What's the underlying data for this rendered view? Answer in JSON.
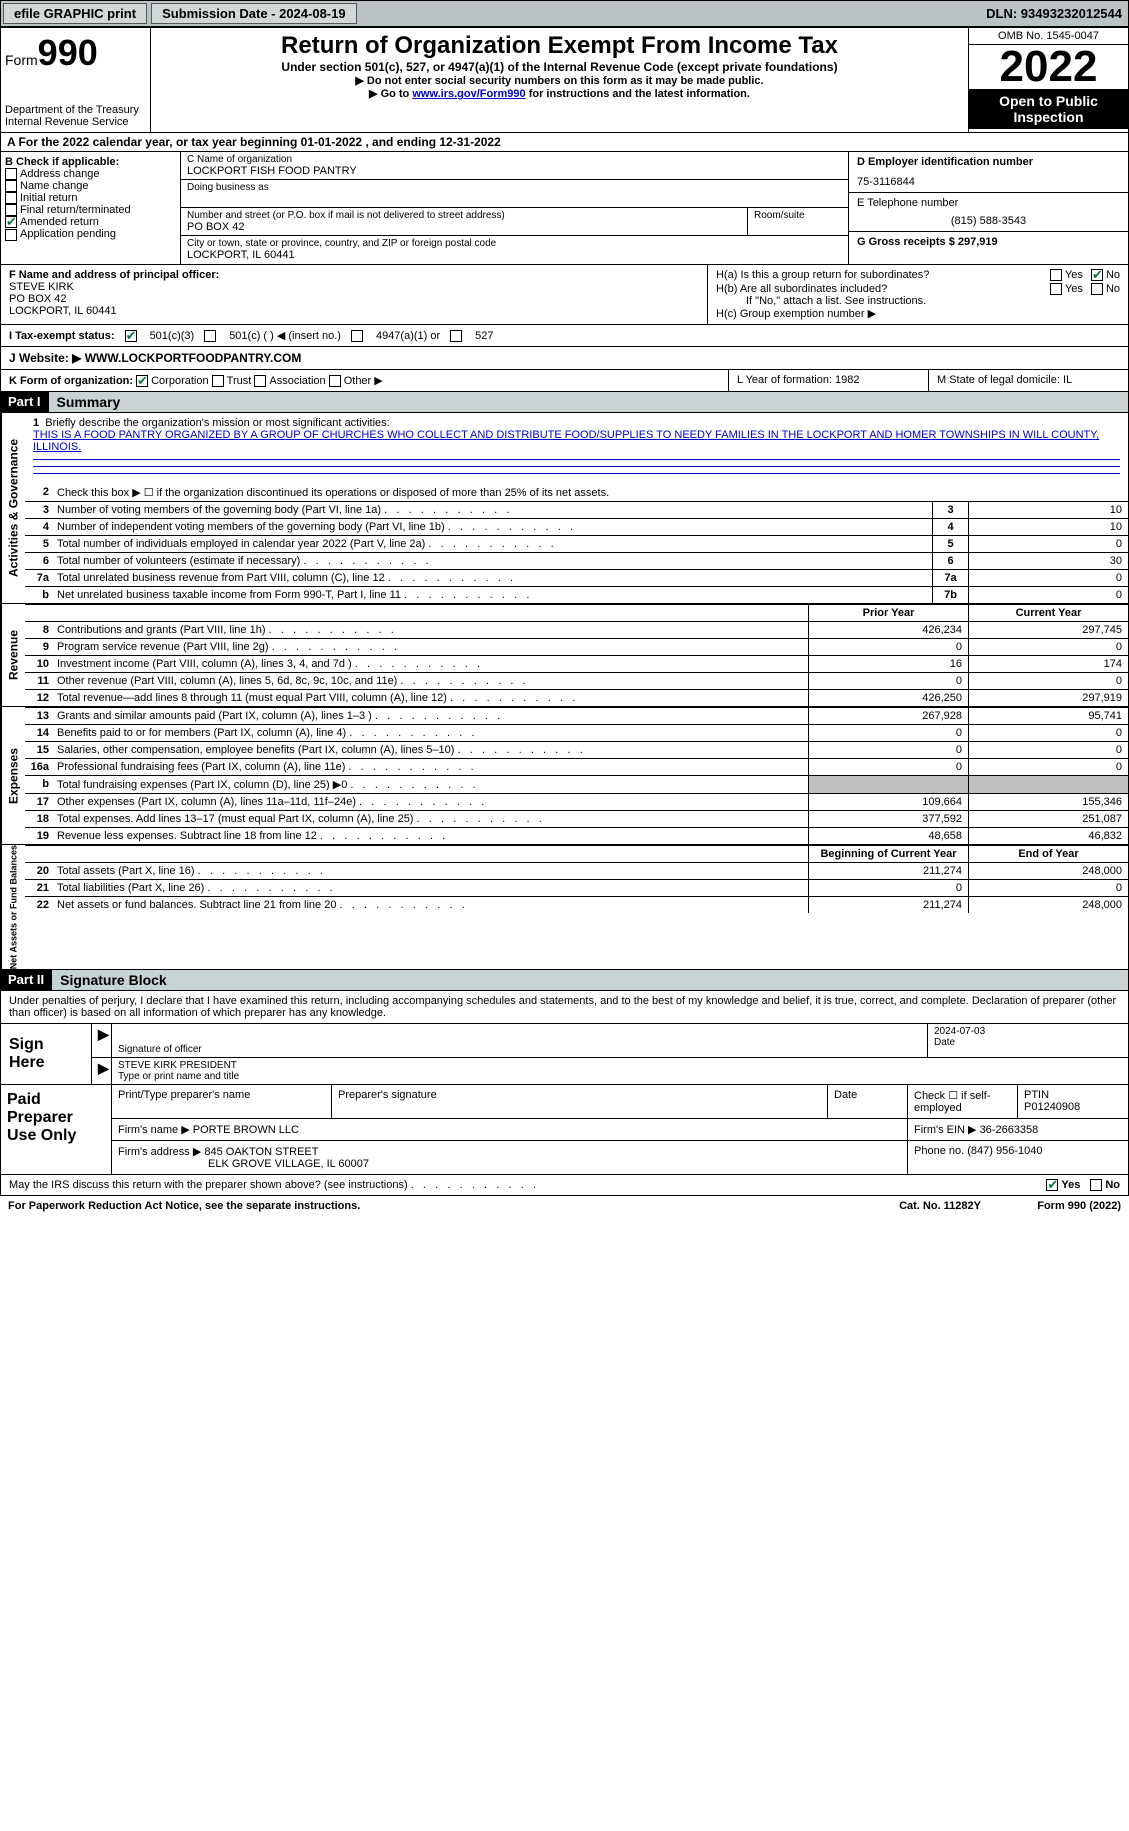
{
  "topbar": {
    "efile": "efile GRAPHIC print",
    "sub_label": "Submission Date - 2024-08-19",
    "dln_label": "DLN: 93493232012544"
  },
  "header": {
    "form_label": "Form",
    "form_num": "990",
    "dept": "Department of the Treasury",
    "irs": "Internal Revenue Service",
    "title": "Return of Organization Exempt From Income Tax",
    "subtitle": "Under section 501(c), 527, or 4947(a)(1) of the Internal Revenue Code (except private foundations)",
    "note1": "▶ Do not enter social security numbers on this form as it may be made public.",
    "note2_pre": "▶ Go to ",
    "note2_link": "www.irs.gov/Form990",
    "note2_post": " for instructions and the latest information.",
    "omb": "OMB No. 1545-0047",
    "year": "2022",
    "opi": "Open to Public Inspection"
  },
  "row_a": "A For the 2022 calendar year, or tax year beginning 01-01-2022    , and ending 12-31-2022",
  "col_b": {
    "label": "B Check if applicable:",
    "items": [
      "Address change",
      "Name change",
      "Initial return",
      "Final return/terminated",
      "Amended return",
      "Application pending"
    ],
    "checked_idx": 4
  },
  "col_c": {
    "name_label": "C Name of organization",
    "name": "LOCKPORT FISH FOOD PANTRY",
    "dba_label": "Doing business as",
    "street_label": "Number and street (or P.O. box if mail is not delivered to street address)",
    "street": "PO BOX 42",
    "room_label": "Room/suite",
    "city_label": "City or town, state or province, country, and ZIP or foreign postal code",
    "city": "LOCKPORT, IL  60441"
  },
  "col_d": {
    "d_label": "D Employer identification number",
    "d_val": "75-3116844",
    "e_label": "E Telephone number",
    "e_val": "(815) 588-3543",
    "g_label": "G Gross receipts $ 297,919"
  },
  "fgh": {
    "f_label": "F Name and address of principal officer:",
    "f_name": "STEVE KIRK",
    "f_addr1": "PO BOX 42",
    "f_addr2": "LOCKPORT, IL  60441",
    "ha": "H(a)  Is this a group return for subordinates?",
    "hb": "H(b)  Are all subordinates included?",
    "hb_note": "If \"No,\" attach a list. See instructions.",
    "hc": "H(c)  Group exemption number ▶",
    "yes": "Yes",
    "no": "No"
  },
  "line_i": {
    "label": "I   Tax-exempt status:",
    "opts": [
      "501(c)(3)",
      "501(c) (   ) ◀ (insert no.)",
      "4947(a)(1) or",
      "527"
    ]
  },
  "line_j": {
    "label": "J   Website: ▶",
    "val": "  WWW.LOCKPORTFOODPANTRY.COM"
  },
  "line_k": {
    "label": "K Form of organization:",
    "opts": [
      "Corporation",
      "Trust",
      "Association",
      "Other ▶"
    ],
    "l": "L Year of formation: 1982",
    "m": "M State of legal domicile: IL"
  },
  "part1": {
    "head": "Part I",
    "title": "Summary",
    "mission_label": "Briefly describe the organization's mission or most significant activities:",
    "mission": "THIS IS A FOOD PANTRY ORGANIZED BY A GROUP OF CHURCHES WHO COLLECT AND DISTRIBUTE FOOD/SUPPLIES TO NEEDY FAMILIES IN THE LOCKPORT AND HOMER TOWNSHIPS IN WILL COUNTY, ILLINOIS.",
    "line2": "Check this box ▶ ☐ if the organization discontinued its operations or disposed of more than 25% of its net assets.",
    "vtabs": {
      "ag": "Activities & Governance",
      "rev": "Revenue",
      "exp": "Expenses",
      "na": "Net Assets or Fund Balances"
    },
    "lines_gov": [
      {
        "n": "3",
        "t": "Number of voting members of the governing body (Part VI, line 1a)",
        "b": "3",
        "v": "10"
      },
      {
        "n": "4",
        "t": "Number of independent voting members of the governing body (Part VI, line 1b)",
        "b": "4",
        "v": "10"
      },
      {
        "n": "5",
        "t": "Total number of individuals employed in calendar year 2022 (Part V, line 2a)",
        "b": "5",
        "v": "0"
      },
      {
        "n": "6",
        "t": "Total number of volunteers (estimate if necessary)",
        "b": "6",
        "v": "30"
      },
      {
        "n": "7a",
        "t": "Total unrelated business revenue from Part VIII, column (C), line 12",
        "b": "7a",
        "v": "0"
      },
      {
        "n": "b",
        "t": "Net unrelated business taxable income from Form 990-T, Part I, line 11",
        "b": "7b",
        "v": "0"
      }
    ],
    "rev_head": {
      "prior": "Prior Year",
      "current": "Current Year"
    },
    "lines_rev": [
      {
        "n": "8",
        "t": "Contributions and grants (Part VIII, line 1h)",
        "c1": "426,234",
        "c2": "297,745"
      },
      {
        "n": "9",
        "t": "Program service revenue (Part VIII, line 2g)",
        "c1": "0",
        "c2": "0"
      },
      {
        "n": "10",
        "t": "Investment income (Part VIII, column (A), lines 3, 4, and 7d )",
        "c1": "16",
        "c2": "174"
      },
      {
        "n": "11",
        "t": "Other revenue (Part VIII, column (A), lines 5, 6d, 8c, 9c, 10c, and 11e)",
        "c1": "0",
        "c2": "0"
      },
      {
        "n": "12",
        "t": "Total revenue—add lines 8 through 11 (must equal Part VIII, column (A), line 12)",
        "c1": "426,250",
        "c2": "297,919"
      }
    ],
    "lines_exp": [
      {
        "n": "13",
        "t": "Grants and similar amounts paid (Part IX, column (A), lines 1–3 )",
        "c1": "267,928",
        "c2": "95,741"
      },
      {
        "n": "14",
        "t": "Benefits paid to or for members (Part IX, column (A), line 4)",
        "c1": "0",
        "c2": "0"
      },
      {
        "n": "15",
        "t": "Salaries, other compensation, employee benefits (Part IX, column (A), lines 5–10)",
        "c1": "0",
        "c2": "0"
      },
      {
        "n": "16a",
        "t": "Professional fundraising fees (Part IX, column (A), line 11e)",
        "c1": "0",
        "c2": "0"
      },
      {
        "n": "b",
        "t": "Total fundraising expenses (Part IX, column (D), line 25) ▶0",
        "c1": "",
        "c2": "",
        "gray": true
      },
      {
        "n": "17",
        "t": "Other expenses (Part IX, column (A), lines 11a–11d, 11f–24e)",
        "c1": "109,664",
        "c2": "155,346"
      },
      {
        "n": "18",
        "t": "Total expenses. Add lines 13–17 (must equal Part IX, column (A), line 25)",
        "c1": "377,592",
        "c2": "251,087"
      },
      {
        "n": "19",
        "t": "Revenue less expenses. Subtract line 18 from line 12",
        "c1": "48,658",
        "c2": "46,832"
      }
    ],
    "na_head": {
      "prior": "Beginning of Current Year",
      "current": "End of Year"
    },
    "lines_na": [
      {
        "n": "20",
        "t": "Total assets (Part X, line 16)",
        "c1": "211,274",
        "c2": "248,000"
      },
      {
        "n": "21",
        "t": "Total liabilities (Part X, line 26)",
        "c1": "0",
        "c2": "0"
      },
      {
        "n": "22",
        "t": "Net assets or fund balances. Subtract line 21 from line 20",
        "c1": "211,274",
        "c2": "248,000"
      }
    ]
  },
  "part2": {
    "head": "Part II",
    "title": "Signature Block",
    "intro": "Under penalties of perjury, I declare that I have examined this return, including accompanying schedules and statements, and to the best of my knowledge and belief, it is true, correct, and complete. Declaration of preparer (other than officer) is based on all information of which preparer has any knowledge.",
    "sign_here": "Sign Here",
    "sig_officer": "Signature of officer",
    "date_label": "Date",
    "date_val": "2024-07-03",
    "name_title": "STEVE KIRK  PRESIDENT",
    "name_label": "Type or print name and title",
    "paid": "Paid Preparer Use Only",
    "p_name_label": "Print/Type preparer's name",
    "p_sig_label": "Preparer's signature",
    "p_date_label": "Date",
    "p_check": "Check ☐ if self-employed",
    "ptin_label": "PTIN",
    "ptin": "P01240908",
    "firm_name_label": "Firm's name    ▶",
    "firm_name": "PORTE BROWN LLC",
    "firm_ein_label": "Firm's EIN ▶",
    "firm_ein": "36-2663358",
    "firm_addr_label": "Firm's address ▶",
    "firm_addr1": "845 OAKTON STREET",
    "firm_addr2": "ELK GROVE VILLAGE, IL  60007",
    "phone_label": "Phone no.",
    "phone": "(847) 956-1040",
    "may": "May the IRS discuss this return with the preparer shown above? (see instructions)"
  },
  "footer": {
    "left": "For Paperwork Reduction Act Notice, see the separate instructions.",
    "mid": "Cat. No. 11282Y",
    "right": "Form 990 (2022)"
  }
}
